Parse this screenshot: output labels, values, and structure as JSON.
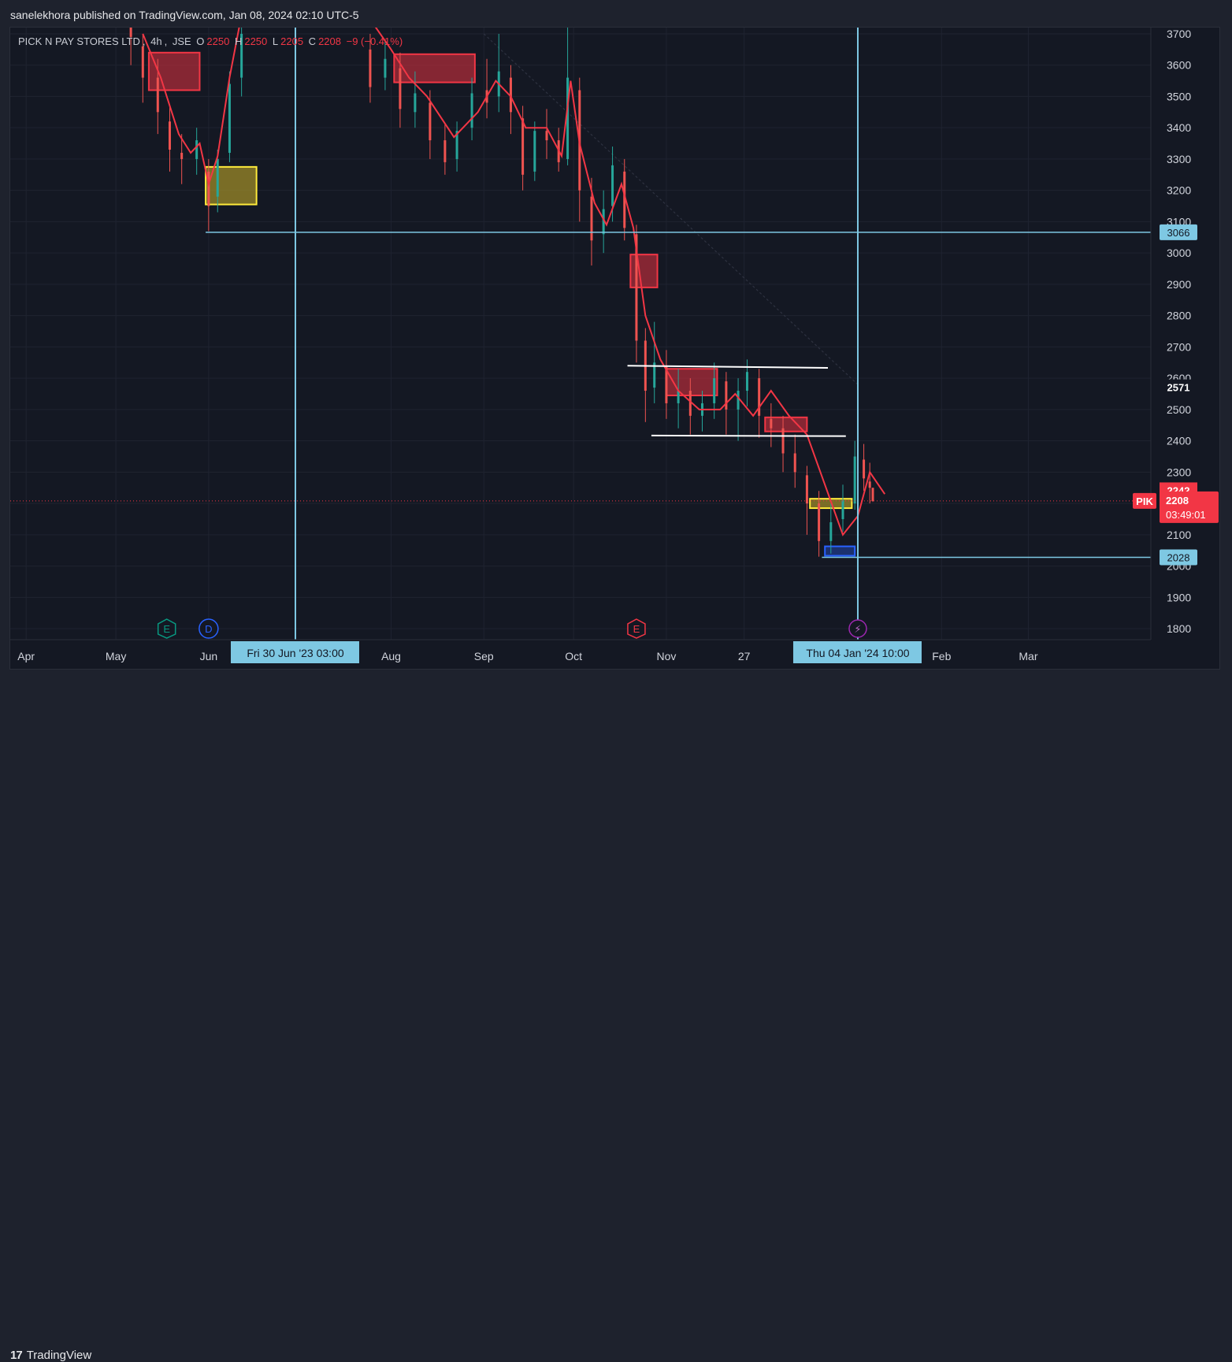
{
  "header": {
    "publisher_line": "sanelekhora published on TradingView.com, Jan 08, 2024 02:10 UTC-5"
  },
  "legend": {
    "symbol": "PICK N PAY STORES LTD",
    "interval": "4h",
    "exchange": "JSE",
    "open_label": "O",
    "open": "2250",
    "high_label": "H",
    "high": "2250",
    "low_label": "L",
    "low": "2205",
    "close_label": "C",
    "close": "2208",
    "change": "−9 (−0.41%)"
  },
  "footer": {
    "brand": "TradingView",
    "brand_mark": "17"
  },
  "colors": {
    "background": "#141823",
    "grid": "#1f2330",
    "candle_up": "#26a69a",
    "candle_down": "#ef5350",
    "ma_line": "#f23645",
    "crosshair": "#7ec8e3",
    "supply_zone": "#b22d3a",
    "demand_zone": "#b8a232",
    "blue_zone": "#2962ff",
    "price_tag": "#f23645"
  },
  "chart_data": {
    "type": "candlestick",
    "title": "PICK N PAY STORES LTD · 4h · JSE",
    "ylim": [
      1765,
      3720
    ],
    "y_ticks": [
      "3700",
      "3600",
      "3500",
      "3400",
      "3300",
      "3200",
      "3100",
      "3000",
      "2900",
      "2800",
      "2700",
      "2600",
      "2500",
      "2400",
      "2300",
      "2200",
      "2100",
      "2000",
      "1900",
      "1800"
    ],
    "x_ticks": [
      "Apr",
      "May",
      "Jun",
      "Aug",
      "Sep",
      "Oct",
      "Nov",
      "27",
      "Feb",
      "Mar"
    ],
    "ma_path": [
      [
        "2023-05-10",
        3700
      ],
      [
        "2023-05-16",
        3560
      ],
      [
        "2023-05-22",
        3380
      ],
      [
        "2023-05-26",
        3320
      ],
      [
        "2023-05-29",
        3350
      ],
      [
        "2023-06-01",
        3220
      ],
      [
        "2023-06-04",
        3310
      ],
      [
        "2023-06-08",
        3560
      ],
      [
        "2023-06-12",
        3760
      ],
      [
        "2023-07-24",
        3760
      ],
      [
        "2023-08-01",
        3650
      ],
      [
        "2023-08-07",
        3560
      ],
      [
        "2023-08-13",
        3500
      ],
      [
        "2023-08-22",
        3370
      ],
      [
        "2023-08-30",
        3450
      ],
      [
        "2023-09-05",
        3550
      ],
      [
        "2023-09-10",
        3500
      ],
      [
        "2023-09-15",
        3400
      ],
      [
        "2023-09-22",
        3400
      ],
      [
        "2023-09-27",
        3310
      ],
      [
        "2023-09-30",
        3550
      ],
      [
        "2023-10-03",
        3350
      ],
      [
        "2023-10-08",
        3160
      ],
      [
        "2023-10-12",
        3090
      ],
      [
        "2023-10-17",
        3220
      ],
      [
        "2023-10-21",
        3080
      ],
      [
        "2023-10-25",
        2800
      ],
      [
        "2023-10-30",
        2660
      ],
      [
        "2023-11-05",
        2560
      ],
      [
        "2023-11-12",
        2500
      ],
      [
        "2023-11-19",
        2500
      ],
      [
        "2023-11-24",
        2550
      ],
      [
        "2023-11-30",
        2480
      ],
      [
        "2023-12-06",
        2560
      ],
      [
        "2023-12-12",
        2480
      ],
      [
        "2023-12-18",
        2420
      ],
      [
        "2023-12-24",
        2260
      ],
      [
        "2023-12-30",
        2100
      ],
      [
        "2024-01-04",
        2160
      ],
      [
        "2024-01-08",
        2300
      ],
      [
        "2024-01-13",
        2230
      ]
    ],
    "candles": [
      [
        "2023-05-06",
        3720,
        3690,
        3740,
        3600
      ],
      [
        "2023-05-10",
        3660,
        3560,
        3700,
        3480
      ],
      [
        "2023-05-15",
        3560,
        3450,
        3620,
        3380
      ],
      [
        "2023-05-19",
        3420,
        3330,
        3470,
        3260
      ],
      [
        "2023-05-23",
        3320,
        3300,
        3380,
        3220
      ],
      [
        "2023-05-28",
        3300,
        3360,
        3400,
        3250
      ],
      [
        "2023-06-01",
        3260,
        3150,
        3300,
        3070
      ],
      [
        "2023-06-04",
        3180,
        3300,
        3330,
        3130
      ],
      [
        "2023-06-08",
        3320,
        3540,
        3580,
        3290
      ],
      [
        "2023-06-12",
        3560,
        3700,
        3740,
        3500
      ],
      [
        "2023-07-25",
        3650,
        3530,
        3700,
        3480
      ],
      [
        "2023-07-30",
        3560,
        3620,
        3680,
        3520
      ],
      [
        "2023-08-04",
        3590,
        3460,
        3640,
        3400
      ],
      [
        "2023-08-09",
        3450,
        3510,
        3580,
        3400
      ],
      [
        "2023-08-14",
        3480,
        3360,
        3520,
        3300
      ],
      [
        "2023-08-19",
        3360,
        3290,
        3410,
        3250
      ],
      [
        "2023-08-23",
        3300,
        3390,
        3420,
        3260
      ],
      [
        "2023-08-28",
        3400,
        3510,
        3560,
        3360
      ],
      [
        "2023-09-02",
        3520,
        3480,
        3620,
        3430
      ],
      [
        "2023-09-06",
        3500,
        3580,
        3700,
        3450
      ],
      [
        "2023-09-10",
        3560,
        3450,
        3600,
        3380
      ],
      [
        "2023-09-14",
        3430,
        3250,
        3470,
        3200
      ],
      [
        "2023-09-18",
        3260,
        3390,
        3420,
        3230
      ],
      [
        "2023-09-22",
        3390,
        3360,
        3460,
        3300
      ],
      [
        "2023-09-26",
        3360,
        3290,
        3400,
        3260
      ],
      [
        "2023-09-29",
        3300,
        3560,
        3720,
        3280
      ],
      [
        "2023-10-03",
        3520,
        3200,
        3560,
        3100
      ],
      [
        "2023-10-07",
        3180,
        3040,
        3240,
        2960
      ],
      [
        "2023-10-11",
        3060,
        3140,
        3200,
        3000
      ],
      [
        "2023-10-14",
        3150,
        3280,
        3340,
        3100
      ],
      [
        "2023-10-18",
        3260,
        3080,
        3300,
        3040
      ],
      [
        "2023-10-22",
        3060,
        2720,
        3090,
        2650
      ],
      [
        "2023-10-25",
        2720,
        2560,
        2760,
        2460
      ],
      [
        "2023-10-28",
        2570,
        2650,
        2780,
        2520
      ],
      [
        "2023-11-01",
        2640,
        2520,
        2690,
        2470
      ],
      [
        "2023-11-05",
        2520,
        2560,
        2630,
        2440
      ],
      [
        "2023-11-09",
        2560,
        2480,
        2600,
        2420
      ],
      [
        "2023-11-13",
        2480,
        2520,
        2560,
        2430
      ],
      [
        "2023-11-17",
        2520,
        2600,
        2650,
        2470
      ],
      [
        "2023-11-21",
        2590,
        2500,
        2620,
        2420
      ],
      [
        "2023-11-25",
        2500,
        2560,
        2600,
        2400
      ],
      [
        "2023-11-28",
        2560,
        2620,
        2660,
        2510
      ],
      [
        "2023-12-02",
        2600,
        2480,
        2630,
        2410
      ],
      [
        "2023-12-06",
        2470,
        2440,
        2520,
        2380
      ],
      [
        "2023-12-10",
        2440,
        2360,
        2480,
        2300
      ],
      [
        "2023-12-14",
        2360,
        2300,
        2420,
        2250
      ],
      [
        "2023-12-18",
        2290,
        2200,
        2320,
        2100
      ],
      [
        "2023-12-22",
        2200,
        2080,
        2240,
        2030
      ],
      [
        "2023-12-26",
        2080,
        2140,
        2200,
        2040
      ],
      [
        "2023-12-30",
        2150,
        2210,
        2260,
        2110
      ],
      [
        "2024-01-03",
        2200,
        2350,
        2400,
        2180
      ],
      [
        "2024-01-06",
        2340,
        2280,
        2390,
        2240
      ],
      [
        "2024-01-08",
        2270,
        2250,
        2330,
        2200
      ],
      [
        "2024-01-09",
        2250,
        2208,
        2250,
        2205
      ]
    ],
    "zones": [
      {
        "kind": "supply",
        "x0": "2023-05-12",
        "x1": "2023-05-29",
        "y0": 3520,
        "y1": 3640
      },
      {
        "kind": "demand",
        "x0": "2023-05-31",
        "x1": "2023-06-17",
        "y0": 3155,
        "y1": 3275
      },
      {
        "kind": "supply",
        "x0": "2023-08-02",
        "x1": "2023-08-29",
        "y0": 3545,
        "y1": 3635
      },
      {
        "kind": "supply",
        "x0": "2023-10-20",
        "x1": "2023-10-29",
        "y0": 2890,
        "y1": 2995
      },
      {
        "kind": "supply",
        "x0": "2023-11-01",
        "x1": "2023-11-18",
        "y0": 2545,
        "y1": 2630
      },
      {
        "kind": "supply",
        "x0": "2023-12-04",
        "x1": "2023-12-18",
        "y0": 2430,
        "y1": 2475
      },
      {
        "kind": "demand",
        "x0": "2023-12-19",
        "x1": "2024-01-02",
        "y0": 2185,
        "y1": 2215
      },
      {
        "kind": "blue",
        "x0": "2023-12-24",
        "x1": "2024-01-03",
        "y0": 2033,
        "y1": 2063
      }
    ],
    "trendlines": [
      {
        "x0": "2023-10-19",
        "y0": 2640,
        "x1": "2023-12-25",
        "y1": 2633
      },
      {
        "x0": "2023-10-27",
        "y0": 2417,
        "x1": "2023-12-31",
        "y1": 2415
      }
    ],
    "horizontal_levels": [
      {
        "value": 3066,
        "label": "3066",
        "x0": "2023-05-31"
      },
      {
        "value": 2028,
        "label": "2028",
        "x0": "2023-12-23"
      }
    ],
    "vertical_markers": [
      {
        "date": "2023-06-30",
        "label": "Fri 30 Jun '23   03:00"
      },
      {
        "date": "2024-01-04",
        "label": "Thu 04 Jan '24   10:00"
      }
    ],
    "last_price": {
      "value": 2208,
      "label": "2208",
      "countdown": "03:49:01",
      "symbol": "PIK"
    },
    "price_labels": [
      {
        "value": 2242,
        "label": "2242",
        "style": "red"
      },
      {
        "value": 2571,
        "label": "2571",
        "style": "plain"
      }
    ],
    "events": [
      {
        "date": "2023-05-18",
        "glyph": "E",
        "kind": "earnings-past"
      },
      {
        "date": "2023-06-01",
        "glyph": "D",
        "kind": "dividend"
      },
      {
        "date": "2023-10-22",
        "glyph": "E",
        "kind": "earnings-upcoming"
      },
      {
        "date": "2024-01-04",
        "glyph": "⚡",
        "kind": "split"
      }
    ]
  }
}
